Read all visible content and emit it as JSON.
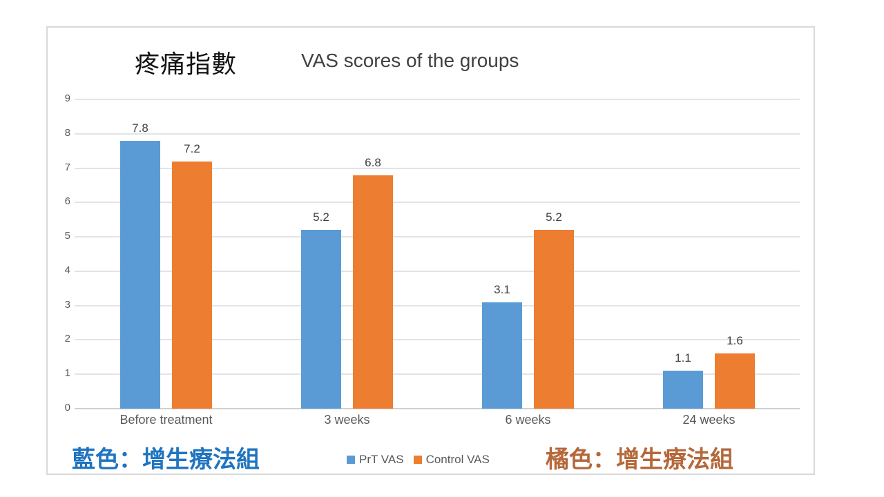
{
  "title": {
    "chinese": "疼痛指數",
    "english": "VAS scores of the groups"
  },
  "colors": {
    "prt": "#5b9bd5",
    "control": "#ed7d31",
    "note_blue": "#1f74c0",
    "note_orange": "#b5683a"
  },
  "notes": {
    "blue": "藍色：增生療法組",
    "orange": "橘色：增生療法組"
  },
  "legend": {
    "prt": "PrT VAS",
    "control": "Control VAS"
  },
  "yticks": [
    "0",
    "1",
    "2",
    "3",
    "4",
    "5",
    "6",
    "7",
    "8",
    "9"
  ],
  "chart_data": {
    "type": "bar",
    "title": "VAS scores of the groups",
    "subtitle": "疼痛指數",
    "categories": [
      "Before treatment",
      "3 weeks",
      "6 weeks",
      "24 weeks"
    ],
    "series": [
      {
        "name": "PrT VAS",
        "color": "#5b9bd5",
        "values": [
          7.8,
          5.2,
          3.1,
          1.1
        ]
      },
      {
        "name": "Control VAS",
        "color": "#ed7d31",
        "values": [
          7.2,
          6.8,
          5.2,
          1.6
        ]
      }
    ],
    "xlabel": "",
    "ylabel": "",
    "ylim": [
      0,
      9
    ],
    "yticks": [
      0,
      1,
      2,
      3,
      4,
      5,
      6,
      7,
      8,
      9
    ],
    "grid": true,
    "legend_position": "bottom",
    "data_labels": true,
    "annotations": [
      "藍色：增生療法組",
      "橘色：增生療法組"
    ]
  }
}
